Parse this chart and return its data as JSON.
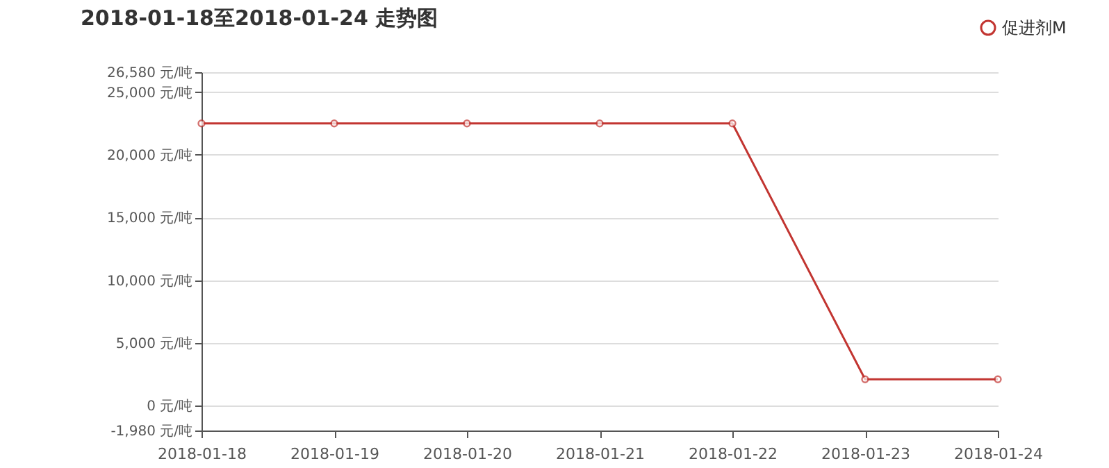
{
  "chart_data": {
    "type": "line",
    "title": "2018-01-18至2018-01-24 走势图",
    "categories": [
      "2018-01-18",
      "2018-01-19",
      "2018-01-20",
      "2018-01-21",
      "2018-01-22",
      "2018-01-23",
      "2018-01-24"
    ],
    "series": [
      {
        "name": "促进剂M",
        "color": "#c23531",
        "values": [
          22500,
          22500,
          22500,
          22500,
          22500,
          2100,
          2100
        ]
      }
    ],
    "ylim": [
      -1980,
      26580
    ],
    "yticks": [
      {
        "value": -1980,
        "label": "-1,980 元/吨"
      },
      {
        "value": 0,
        "label": "0 元/吨"
      },
      {
        "value": 5000,
        "label": "5,000 元/吨"
      },
      {
        "value": 10000,
        "label": "10,000 元/吨"
      },
      {
        "value": 15000,
        "label": "15,000 元/吨"
      },
      {
        "value": 20000,
        "label": "20,000 元/吨"
      },
      {
        "value": 25000,
        "label": "25,000 元/吨"
      },
      {
        "value": 26580,
        "label": "26,580 元/吨"
      }
    ],
    "grid": "y",
    "legend": "top right",
    "marker": "circle",
    "line_style": "solid"
  }
}
